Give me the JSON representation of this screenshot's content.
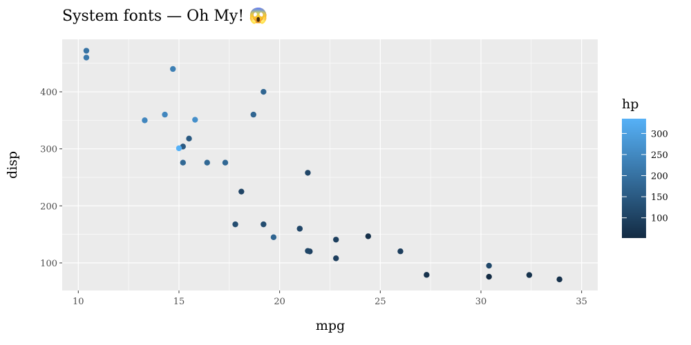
{
  "chart_data": {
    "type": "scatter",
    "title": "System fonts — Oh My! 😱",
    "xlabel": "mpg",
    "ylabel": "disp",
    "xlim": [
      9.2,
      35.8
    ],
    "ylim": [
      51.6,
      492
    ],
    "x_ticks": [
      10,
      15,
      20,
      25,
      30,
      35
    ],
    "y_ticks": [
      100,
      200,
      300,
      400
    ],
    "grid": true,
    "legend": {
      "title": "hp",
      "position": "right",
      "type": "colorbar",
      "range": [
        52,
        335
      ],
      "ticks": [
        100,
        150,
        200,
        250,
        300
      ],
      "low_color": "#132B43",
      "high_color": "#56B1F7"
    },
    "panel_background": "#EBEBEB",
    "points": [
      {
        "mpg": 21.0,
        "disp": 160,
        "hp": 110
      },
      {
        "mpg": 21.0,
        "disp": 160,
        "hp": 110
      },
      {
        "mpg": 22.8,
        "disp": 108,
        "hp": 93
      },
      {
        "mpg": 21.4,
        "disp": 258,
        "hp": 110
      },
      {
        "mpg": 18.7,
        "disp": 360,
        "hp": 175
      },
      {
        "mpg": 18.1,
        "disp": 225,
        "hp": 105
      },
      {
        "mpg": 14.3,
        "disp": 360,
        "hp": 245
      },
      {
        "mpg": 24.4,
        "disp": 146.7,
        "hp": 62
      },
      {
        "mpg": 22.8,
        "disp": 140.8,
        "hp": 95
      },
      {
        "mpg": 19.2,
        "disp": 167.6,
        "hp": 123
      },
      {
        "mpg": 17.8,
        "disp": 167.6,
        "hp": 123
      },
      {
        "mpg": 16.4,
        "disp": 275.8,
        "hp": 180
      },
      {
        "mpg": 17.3,
        "disp": 275.8,
        "hp": 180
      },
      {
        "mpg": 15.2,
        "disp": 275.8,
        "hp": 180
      },
      {
        "mpg": 10.4,
        "disp": 472,
        "hp": 205
      },
      {
        "mpg": 10.4,
        "disp": 460,
        "hp": 215
      },
      {
        "mpg": 14.7,
        "disp": 440,
        "hp": 230
      },
      {
        "mpg": 32.4,
        "disp": 78.7,
        "hp": 66
      },
      {
        "mpg": 30.4,
        "disp": 75.7,
        "hp": 52
      },
      {
        "mpg": 33.9,
        "disp": 71.1,
        "hp": 65
      },
      {
        "mpg": 21.5,
        "disp": 120.1,
        "hp": 97
      },
      {
        "mpg": 15.5,
        "disp": 318,
        "hp": 150
      },
      {
        "mpg": 15.2,
        "disp": 304,
        "hp": 150
      },
      {
        "mpg": 13.3,
        "disp": 350,
        "hp": 245
      },
      {
        "mpg": 19.2,
        "disp": 400,
        "hp": 175
      },
      {
        "mpg": 27.3,
        "disp": 79,
        "hp": 66
      },
      {
        "mpg": 26.0,
        "disp": 120.3,
        "hp": 91
      },
      {
        "mpg": 30.4,
        "disp": 95.1,
        "hp": 113
      },
      {
        "mpg": 15.8,
        "disp": 351,
        "hp": 264
      },
      {
        "mpg": 19.7,
        "disp": 145,
        "hp": 175
      },
      {
        "mpg": 15.0,
        "disp": 301,
        "hp": 335
      },
      {
        "mpg": 21.4,
        "disp": 121,
        "hp": 109
      }
    ]
  }
}
